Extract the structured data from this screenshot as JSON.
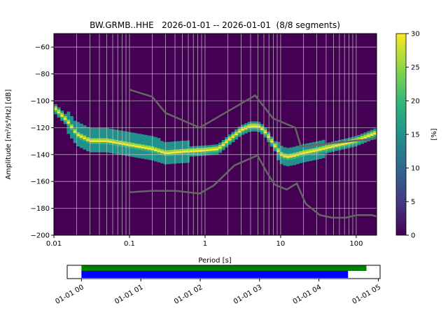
{
  "chart_data": {
    "type": "heatmap",
    "title": "BW.GRMB..HHE   2026-01-01 -- 2026-01-01  (8/8 segments)",
    "xlabel": "Period [s]",
    "ylabel": "Amplitude [m²/s⁴/Hz] [dB]",
    "xscale": "log",
    "xlim": [
      0.01,
      186
    ],
    "ylim": [
      -200,
      -50
    ],
    "xticks": [
      0.01,
      0.1,
      1,
      10,
      100
    ],
    "xtick_labels": [
      "0.01",
      "0.1",
      "1",
      "10",
      "100"
    ],
    "yticks": [
      -200,
      -180,
      -160,
      -140,
      -120,
      -100,
      -80,
      -60
    ],
    "ytick_labels": [
      "−200",
      "−180",
      "−160",
      "−140",
      "−120",
      "−100",
      "−80",
      "−60"
    ],
    "grid": true,
    "colorbar": {
      "label": "[%]",
      "range": [
        0,
        30
      ],
      "ticks": [
        0,
        5,
        10,
        15,
        20,
        25,
        30
      ],
      "tick_labels": [
        "0",
        "5",
        "10",
        "15",
        "20",
        "25",
        "30"
      ],
      "colormap": "viridis"
    },
    "mode_curve": {
      "period": [
        0.01,
        0.015,
        0.02,
        0.03,
        0.05,
        0.1,
        0.2,
        0.3,
        0.5,
        1,
        1.5,
        2,
        3,
        4,
        5,
        6,
        8,
        10,
        12,
        15,
        20,
        30,
        50,
        100,
        150,
        186
      ],
      "amplitude": [
        -105,
        -115,
        -125,
        -130,
        -130,
        -133,
        -136,
        -139,
        -138,
        -137,
        -136,
        -130,
        -122,
        -119,
        -119,
        -122,
        -132,
        -140,
        -142,
        -141,
        -139,
        -137,
        -134,
        -130,
        -126,
        -124
      ]
    },
    "noise_models": [
      {
        "name": "NHNM",
        "period": [
          0.1,
          0.2,
          0.3,
          0.85,
          4.6,
          7.9,
          15.6,
          18.5,
          186
        ],
        "amplitude": [
          -91.7,
          -97,
          -109,
          -120,
          -96,
          -113,
          -120,
          -134,
          -128
        ]
      },
      {
        "name": "NLNM",
        "period": [
          0.1,
          0.2,
          0.4,
          0.85,
          1.3,
          2.45,
          4.95,
          6.7,
          8.4,
          12,
          16.4,
          21.5,
          33,
          48,
          73,
          102,
          158,
          186
        ],
        "amplitude": [
          -168,
          -167,
          -167,
          -169,
          -163,
          -148,
          -140.6,
          -154,
          -162.5,
          -166,
          -161.5,
          -176.6,
          -185,
          -187,
          -187,
          -185,
          -185,
          -186
        ]
      }
    ],
    "model_color": "#666666"
  },
  "timeline": {
    "tick_labels": [
      "01-01 00",
      "01-01 01",
      "01-01 02",
      "01-01 03",
      "01-01 04",
      "01-01 05"
    ],
    "range_hours": [
      -0.24,
      5.03
    ],
    "bars": [
      {
        "name": "data-coverage",
        "color": "#008000",
        "start_hours": 0,
        "end_hours": 4.8
      },
      {
        "name": "processed-segments",
        "color": "#0000ff",
        "start_hours": 0,
        "end_hours": 4.49
      }
    ]
  }
}
